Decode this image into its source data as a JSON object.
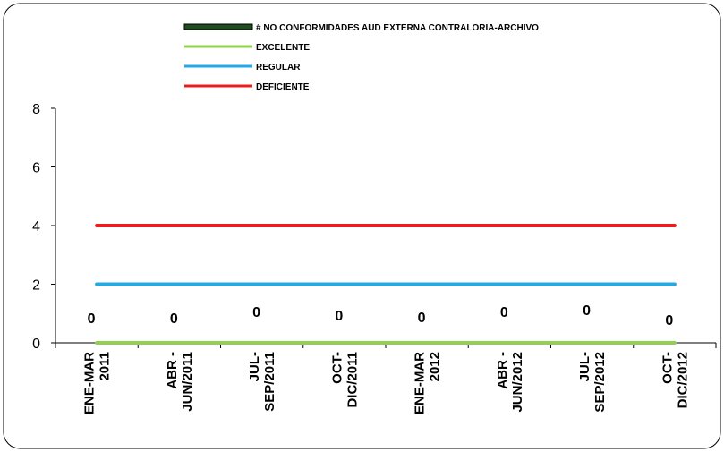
{
  "chart_data": {
    "type": "line",
    "categories": [
      [
        "ENE-MAR",
        "2011"
      ],
      [
        "ABR -",
        "JUN/2011"
      ],
      [
        "JUL-",
        "SEP/2011"
      ],
      [
        "OCT-",
        "DIC/2011"
      ],
      [
        "ENE-MAR",
        "2012"
      ],
      [
        "ABR -",
        "JUN/2012"
      ],
      [
        "JUL-",
        "SEP/2012"
      ],
      [
        "OCT-",
        "DIC/2012"
      ]
    ],
    "series": [
      {
        "name": "# NO CONFORMIDADES AUD EXTERNA CONTRALORIA-ARCHIVO",
        "kind": "bar",
        "color": "#1e4d1e",
        "values": [
          0,
          0,
          0,
          0,
          0,
          0,
          0,
          0
        ],
        "data_labels": [
          "0",
          "0",
          "0",
          "0",
          "0",
          "0",
          "0",
          "0"
        ]
      },
      {
        "name": "EXCELENTE",
        "kind": "line",
        "color": "#92d050",
        "values": [
          0,
          0,
          0,
          0,
          0,
          0,
          0,
          0
        ]
      },
      {
        "name": "REGULAR",
        "kind": "line",
        "color": "#22aae6",
        "values": [
          2,
          2,
          2,
          2,
          2,
          2,
          2,
          2
        ]
      },
      {
        "name": "DEFICIENTE",
        "kind": "line",
        "color": "#ee1c1c",
        "values": [
          4,
          4,
          4,
          4,
          4,
          4,
          4,
          4
        ]
      }
    ],
    "y_ticks": [
      "0",
      "2",
      "4",
      "6",
      "8"
    ],
    "ylim": [
      0,
      8
    ],
    "grid": false,
    "legend_position": "top-center"
  }
}
